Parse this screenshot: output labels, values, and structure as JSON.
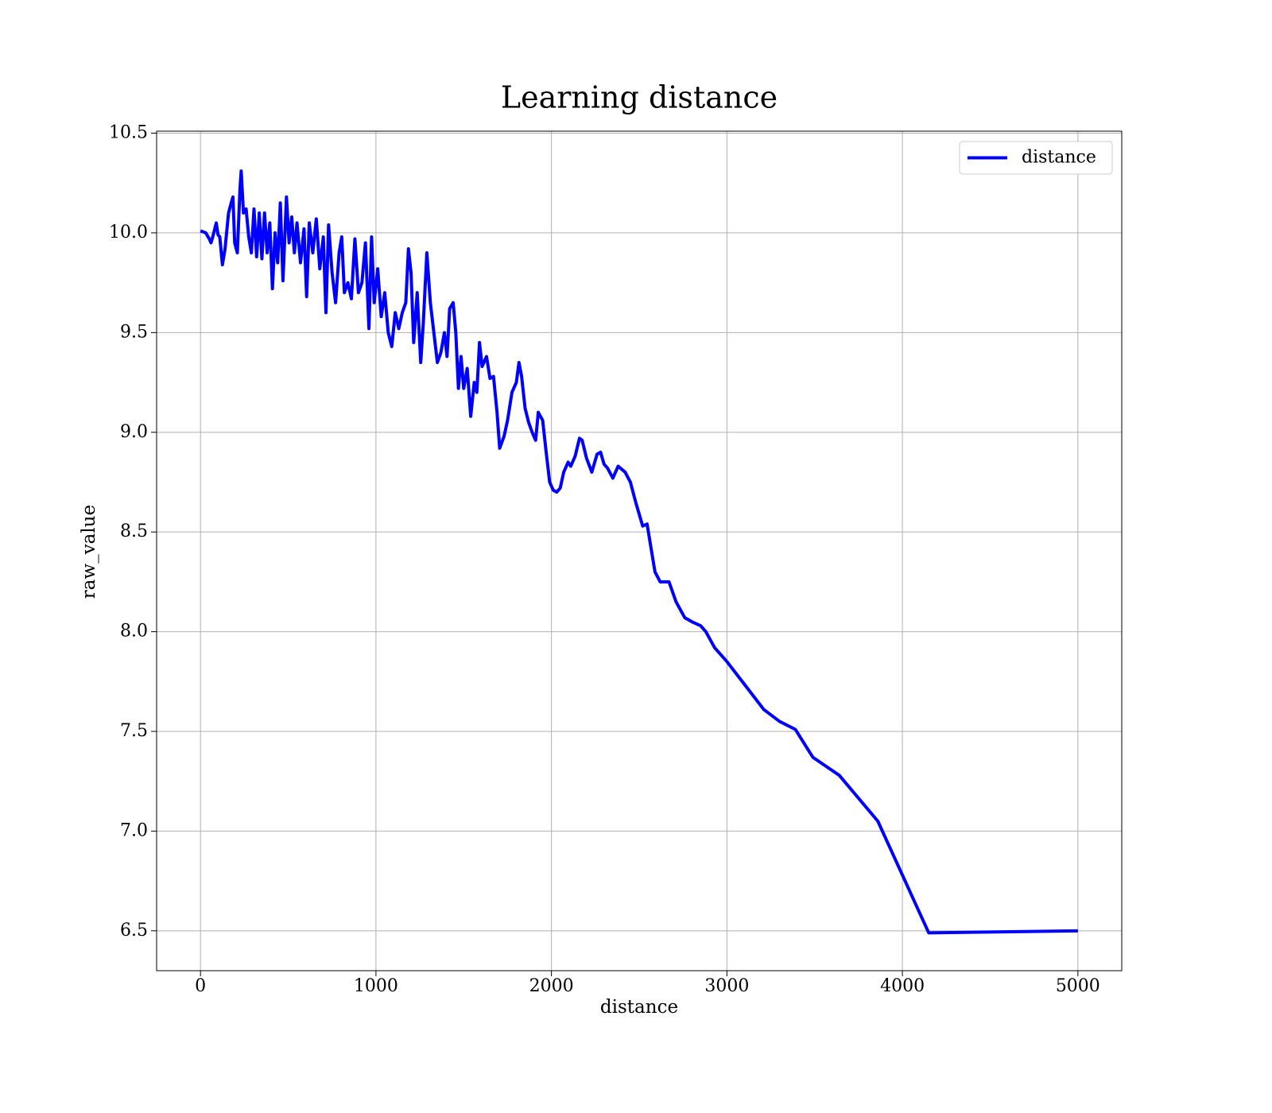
{
  "chart_data": {
    "type": "line",
    "title": "Learning distance",
    "xlabel": "distance",
    "ylabel": "raw_value",
    "x": [
      0,
      30,
      50,
      60,
      70,
      90,
      100,
      110,
      125,
      140,
      160,
      175,
      185,
      195,
      210,
      225,
      232,
      245,
      260,
      275,
      290,
      305,
      320,
      335,
      350,
      365,
      380,
      395,
      410,
      425,
      440,
      455,
      470,
      490,
      505,
      520,
      535,
      550,
      570,
      590,
      605,
      620,
      640,
      660,
      680,
      700,
      715,
      730,
      750,
      770,
      790,
      805,
      820,
      840,
      860,
      880,
      900,
      920,
      940,
      960,
      975,
      990,
      1010,
      1030,
      1050,
      1070,
      1090,
      1110,
      1130,
      1150,
      1170,
      1185,
      1200,
      1215,
      1235,
      1255,
      1270,
      1290,
      1310,
      1330,
      1350,
      1370,
      1390,
      1405,
      1420,
      1440,
      1455,
      1470,
      1485,
      1500,
      1520,
      1540,
      1560,
      1575,
      1590,
      1605,
      1630,
      1650,
      1670,
      1690,
      1705,
      1730,
      1750,
      1775,
      1800,
      1815,
      1830,
      1850,
      1870,
      1890,
      1910,
      1925,
      1950,
      1970,
      1990,
      2010,
      2030,
      2050,
      2070,
      2095,
      2110,
      2135,
      2160,
      2175,
      2200,
      2230,
      2260,
      2280,
      2300,
      2320,
      2350,
      2380,
      2420,
      2450,
      2480,
      2520,
      2545,
      2590,
      2620,
      2670,
      2710,
      2760,
      2800,
      2850,
      2880,
      2930,
      3000,
      3070,
      3210,
      3300,
      3390,
      3490,
      3640,
      3860,
      4150,
      5000
    ],
    "series": [
      {
        "name": "distance",
        "color": "#0000ff",
        "values": [
          10.01,
          10.0,
          9.97,
          9.95,
          9.98,
          10.05,
          9.99,
          9.98,
          9.84,
          9.92,
          10.1,
          10.15,
          10.18,
          9.95,
          9.9,
          10.22,
          10.31,
          10.1,
          10.12,
          9.98,
          9.9,
          10.12,
          9.88,
          10.1,
          9.87,
          10.1,
          9.9,
          10.05,
          9.72,
          10.0,
          9.85,
          10.15,
          9.76,
          10.18,
          9.95,
          10.08,
          9.9,
          10.05,
          9.85,
          10.02,
          9.68,
          10.05,
          9.9,
          10.07,
          9.82,
          9.98,
          9.6,
          10.04,
          9.8,
          9.65,
          9.9,
          9.98,
          9.7,
          9.75,
          9.67,
          9.97,
          9.7,
          9.75,
          9.95,
          9.52,
          9.98,
          9.65,
          9.82,
          9.58,
          9.7,
          9.5,
          9.43,
          9.6,
          9.52,
          9.6,
          9.65,
          9.92,
          9.8,
          9.45,
          9.7,
          9.35,
          9.55,
          9.9,
          9.65,
          9.5,
          9.35,
          9.4,
          9.5,
          9.38,
          9.62,
          9.65,
          9.5,
          9.22,
          9.38,
          9.22,
          9.32,
          9.08,
          9.25,
          9.2,
          9.45,
          9.33,
          9.38,
          9.27,
          9.28,
          9.1,
          8.92,
          8.98,
          9.06,
          9.2,
          9.25,
          9.35,
          9.28,
          9.12,
          9.05,
          9.0,
          8.96,
          9.1,
          9.06,
          8.9,
          8.75,
          8.71,
          8.7,
          8.72,
          8.8,
          8.85,
          8.83,
          8.88,
          8.97,
          8.96,
          8.87,
          8.8,
          8.89,
          8.9,
          8.84,
          8.82,
          8.77,
          8.83,
          8.8,
          8.75,
          8.65,
          8.53,
          8.54,
          8.3,
          8.25,
          8.25,
          8.15,
          8.07,
          8.05,
          8.03,
          8.0,
          7.92,
          7.85,
          7.77,
          7.61,
          7.55,
          7.51,
          7.37,
          7.28,
          7.05,
          6.49,
          6.5
        ]
      }
    ],
    "xlim": [
      -250,
      5250
    ],
    "xticks": [
      0,
      1000,
      2000,
      3000,
      4000,
      5000
    ],
    "ylim": [
      6.3,
      10.51
    ],
    "yticks": [
      {
        "value": 6.5,
        "label": "6.5"
      },
      {
        "value": 7,
        "label": "7.0"
      },
      {
        "value": 7.5,
        "label": "7.5"
      },
      {
        "value": 8,
        "label": "8.0"
      },
      {
        "value": 8.5,
        "label": "8.5"
      },
      {
        "value": 9,
        "label": "9.0"
      },
      {
        "value": 9.5,
        "label": "9.5"
      },
      {
        "value": 10,
        "label": "10.0"
      },
      {
        "value": 10.5,
        "label": "10.5"
      }
    ],
    "grid": true,
    "legend": "upper right"
  }
}
